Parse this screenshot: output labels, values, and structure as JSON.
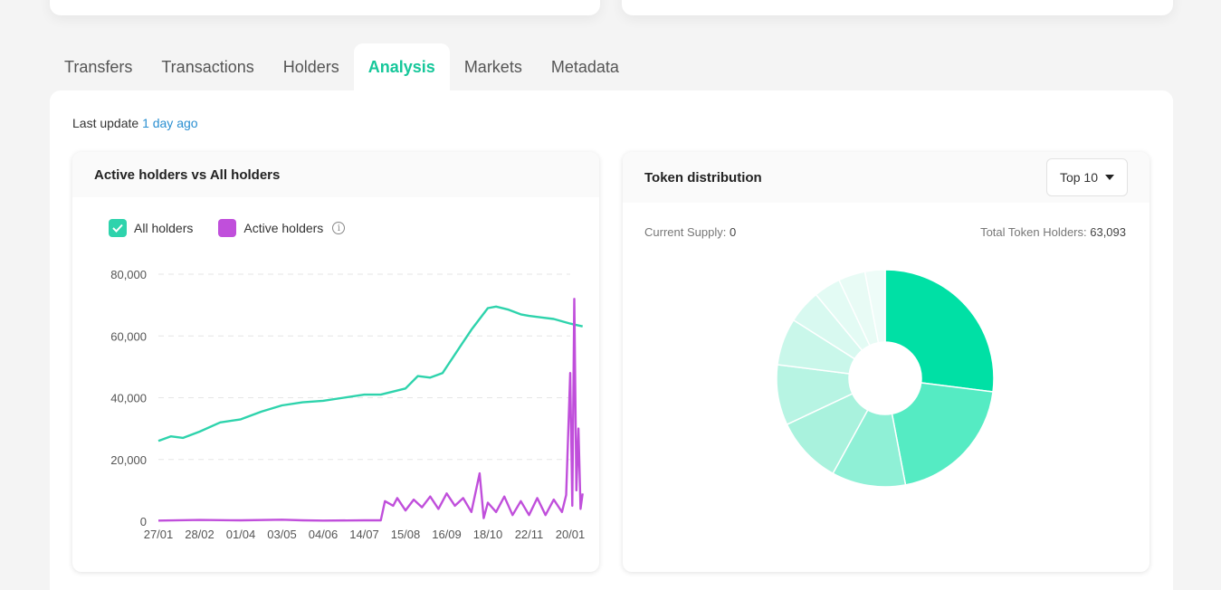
{
  "tabs": [
    "Transfers",
    "Transactions",
    "Holders",
    "Analysis",
    "Markets",
    "Metadata"
  ],
  "active_tab": "Analysis",
  "last_update": {
    "label": "Last update",
    "link": "1 day ago"
  },
  "holders_chart": {
    "title": "Active holders vs All holders",
    "legend": [
      {
        "name": "All holders",
        "color": "#2ed3ac",
        "checked": true
      },
      {
        "name": "Active holders",
        "color": "#c04fdb",
        "checked": true
      }
    ],
    "info_icon": "info-icon"
  },
  "distribution": {
    "title": "Token distribution",
    "dropdown_value": "Top 10",
    "current_supply_label": "Current Supply:",
    "current_supply_value": "0",
    "holders_label": "Total Token Holders:",
    "holders_value": "63,093"
  },
  "chart_data": [
    {
      "type": "line",
      "ylim": [
        0,
        80000
      ],
      "y_ticks": [
        "0",
        "20,000",
        "40,000",
        "60,000",
        "80,000"
      ],
      "y_tick_values": [
        0,
        20000,
        40000,
        60000,
        80000
      ],
      "x_ticks": [
        "27/01",
        "28/02",
        "01/04",
        "03/05",
        "04/06",
        "14/07",
        "15/08",
        "16/09",
        "18/10",
        "22/11",
        "20/01"
      ],
      "grid": true,
      "legend_position": "top-left",
      "series": [
        {
          "name": "All holders",
          "color": "#2ed3ac",
          "x": [
            0,
            0.3,
            0.6,
            1,
            1.5,
            2,
            2.5,
            3,
            3.5,
            4,
            4.5,
            5,
            5.4,
            5.7,
            6,
            6.3,
            6.6,
            6.9,
            7,
            7.3,
            7.6,
            8,
            8.2,
            8.5,
            8.8,
            9,
            9.3,
            9.6,
            10,
            10.3
          ],
          "y": [
            26000,
            27500,
            27000,
            29000,
            32000,
            33000,
            35500,
            37500,
            38500,
            39000,
            40000,
            41000,
            41000,
            42000,
            43000,
            47000,
            46500,
            48000,
            50000,
            56000,
            62000,
            69000,
            69500,
            68500,
            67000,
            66500,
            66000,
            65500,
            64000,
            63100
          ]
        },
        {
          "name": "Active holders",
          "color": "#c04fdb",
          "x": [
            0,
            1,
            2,
            3,
            3.5,
            4,
            5,
            5.4,
            5.5,
            5.7,
            5.8,
            6,
            6.2,
            6.4,
            6.6,
            6.8,
            7,
            7.2,
            7.4,
            7.6,
            7.8,
            7.9,
            8,
            8.2,
            8.4,
            8.6,
            8.8,
            9,
            9.2,
            9.4,
            9.6,
            9.8,
            9.9,
            10,
            10.05,
            10.1,
            10.15,
            10.2,
            10.25,
            10.3
          ],
          "y": [
            200,
            400,
            300,
            500,
            300,
            200,
            300,
            300,
            6500,
            5000,
            7500,
            3500,
            7000,
            4500,
            8000,
            4000,
            9000,
            5000,
            7500,
            3000,
            15500,
            1000,
            6000,
            3000,
            8000,
            2000,
            6500,
            2000,
            7500,
            2000,
            7000,
            3000,
            8500,
            48000,
            5000,
            72000,
            10000,
            30000,
            4000,
            9000
          ]
        }
      ]
    },
    {
      "type": "pie",
      "values": [
        27,
        20,
        11,
        10,
        9,
        7,
        5,
        4,
        4,
        3
      ],
      "colors": [
        "#00e0a5",
        "#55ebc3",
        "#8ff0d6",
        "#a9f2dd",
        "#b7f4e3",
        "#c9f7ea",
        "#d8f9f0",
        "#e3fbf4",
        "#e8fbf5",
        "#eefcf8"
      ]
    }
  ]
}
